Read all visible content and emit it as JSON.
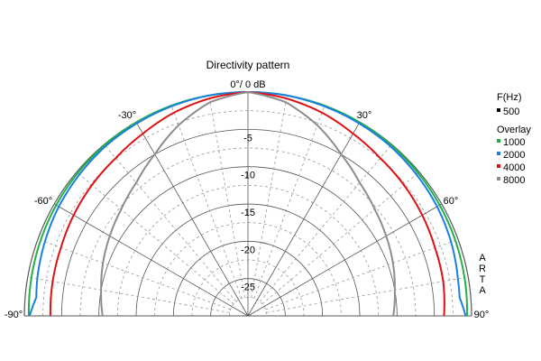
{
  "chart_data": {
    "type": "polar",
    "title": "Directivity pattern",
    "top_label": "0°/ 0 dB",
    "angle_range": [
      -90,
      90
    ],
    "radial_range_db": [
      -30,
      0
    ],
    "angle_tick_labels": [
      {
        "deg": -90,
        "text": "-90°"
      },
      {
        "deg": -60,
        "text": "-60°"
      },
      {
        "deg": -30,
        "text": "-30°"
      },
      {
        "deg": 30,
        "text": "30°"
      },
      {
        "deg": 60,
        "text": "60°"
      },
      {
        "deg": 90,
        "text": "90°"
      }
    ],
    "radial_tick_labels": [
      {
        "db": -5,
        "text": "-5"
      },
      {
        "db": -10,
        "text": "-10"
      },
      {
        "db": -15,
        "text": "-15"
      },
      {
        "db": -20,
        "text": "-20"
      },
      {
        "db": -25,
        "text": "-25"
      }
    ],
    "brand_vertical": "ARTA",
    "legend": {
      "title": "F(Hz)",
      "main_entry": {
        "label": "500",
        "color": "#000000"
      },
      "overlay_title": "Overlay",
      "placement": "right"
    },
    "series": [
      {
        "name": "1000",
        "color": "#22b04a",
        "angles": [
          -90,
          -80,
          -70,
          -60,
          -50,
          -40,
          -30,
          -20,
          -10,
          0,
          10,
          20,
          30,
          40,
          50,
          60,
          70,
          80,
          90
        ],
        "values": [
          -0.6,
          -0.5,
          -0.4,
          -0.3,
          -0.2,
          -0.1,
          -0.05,
          0,
          0,
          0,
          0,
          0,
          -0.05,
          -0.1,
          -0.2,
          -0.3,
          -0.4,
          -0.5,
          -0.6
        ]
      },
      {
        "name": "2000",
        "color": "#1a7fe0",
        "angles": [
          -90,
          -85,
          -80,
          -70,
          -60,
          -50,
          -40,
          -30,
          -20,
          -10,
          0,
          10,
          20,
          30,
          40,
          50,
          60,
          70,
          80,
          85,
          90
        ],
        "values": [
          -0.7,
          -1.5,
          -1.3,
          -1.0,
          -0.7,
          -0.5,
          -0.3,
          -0.2,
          -0.1,
          0,
          0,
          0,
          -0.1,
          -0.2,
          -0.3,
          -0.5,
          -0.7,
          -1.0,
          -1.4,
          -1.5,
          -0.8
        ]
      },
      {
        "name": "4000",
        "color": "#e01010",
        "angles": [
          -90,
          -80,
          -70,
          -60,
          -50,
          -40,
          -30,
          -20,
          -10,
          0,
          10,
          20,
          30,
          40,
          50,
          60,
          70,
          80,
          90
        ],
        "values": [
          -3.5,
          -3.4,
          -3.3,
          -3.0,
          -2.7,
          -2.4,
          -1.8,
          -1.0,
          -0.4,
          0,
          -0.4,
          -1.0,
          -1.8,
          -2.4,
          -2.7,
          -3.0,
          -3.3,
          -3.4,
          -3.7
        ]
      },
      {
        "name": "8000",
        "color": "#8c8c8c",
        "angles": [
          -90,
          -80,
          -70,
          -60,
          -50,
          -40,
          -30,
          -20,
          -10,
          0,
          10,
          20,
          30,
          40,
          50,
          60,
          70,
          80,
          90
        ],
        "values": [
          -10.5,
          -10.0,
          -9.3,
          -8.6,
          -7.8,
          -6.7,
          -5.0,
          -2.8,
          -0.9,
          0,
          -0.9,
          -2.8,
          -5.0,
          -6.7,
          -7.8,
          -8.6,
          -9.3,
          -10.0,
          -10.5
        ]
      }
    ]
  }
}
